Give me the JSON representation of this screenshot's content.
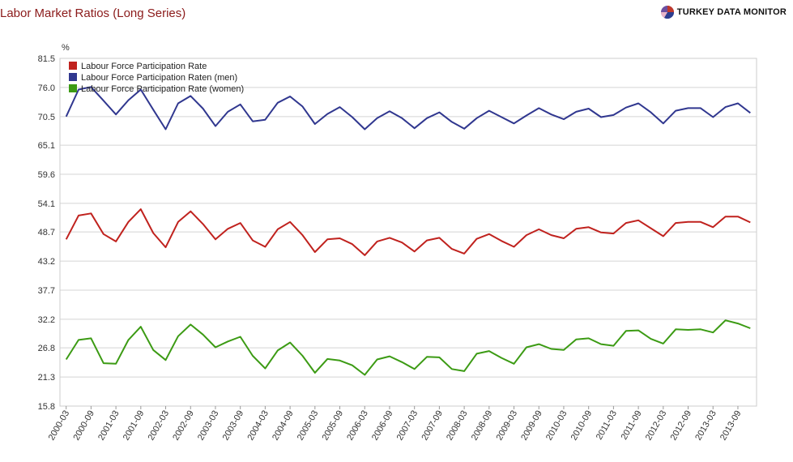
{
  "header": {
    "title": "Labor Market Ratios (Long Series)",
    "brand": "TURKEY DATA MONITOR",
    "brand_colors": [
      "#c0392b",
      "#2c3e8f",
      "#e8b4c8",
      "#6c4fa0"
    ]
  },
  "chart_data": {
    "type": "line",
    "title": "Labor Market Ratios (Long Series)",
    "ylabel": "%",
    "xlabel": "",
    "ylim": [
      15.8,
      81.5
    ],
    "yticks": [
      15.8,
      21.3,
      26.8,
      32.2,
      37.7,
      43.2,
      48.7,
      54.1,
      59.6,
      65.1,
      70.5,
      76.0,
      81.5
    ],
    "ytick_labels": [
      "15.8",
      "21.3",
      "26.8",
      "32.2",
      "37.7",
      "43.2",
      "48.7",
      "54.1",
      "59.6",
      "65.1",
      "70.5",
      "76.0",
      "81.5"
    ],
    "grid": true,
    "legend_position": "top-left",
    "xtick_labels": [
      "2000-03",
      "2000-09",
      "2001-03",
      "2001-09",
      "2002-03",
      "2002-09",
      "2003-03",
      "2003-09",
      "2004-03",
      "2004-09",
      "2005-03",
      "2005-09",
      "2006-03",
      "2006-09",
      "2007-03",
      "2007-09",
      "2008-03",
      "2008-09",
      "2009-03",
      "2009-09",
      "2010-03",
      "2010-09",
      "2011-03",
      "2011-09",
      "2012-03",
      "2012-09",
      "2013-03",
      "2013-09"
    ],
    "x": [
      "2000-03",
      "2000-06",
      "2000-09",
      "2000-12",
      "2001-03",
      "2001-06",
      "2001-09",
      "2001-12",
      "2002-03",
      "2002-06",
      "2002-09",
      "2002-12",
      "2003-03",
      "2003-06",
      "2003-09",
      "2003-12",
      "2004-03",
      "2004-06",
      "2004-09",
      "2004-12",
      "2005-03",
      "2005-06",
      "2005-09",
      "2005-12",
      "2006-03",
      "2006-06",
      "2006-09",
      "2006-12",
      "2007-03",
      "2007-06",
      "2007-09",
      "2007-12",
      "2008-03",
      "2008-06",
      "2008-09",
      "2008-12",
      "2009-03",
      "2009-06",
      "2009-09",
      "2009-12",
      "2010-03",
      "2010-06",
      "2010-09",
      "2010-12",
      "2011-03",
      "2011-06",
      "2011-09",
      "2011-12",
      "2012-03",
      "2012-06",
      "2012-09",
      "2012-12",
      "2013-03",
      "2013-06",
      "2013-09",
      "2013-12"
    ],
    "series": [
      {
        "name": "Labour Force Participation Rate",
        "color": "#c0221e",
        "values": [
          47.3,
          51.8,
          52.2,
          48.3,
          46.9,
          50.6,
          53.0,
          48.5,
          45.8,
          50.6,
          52.6,
          50.2,
          47.3,
          49.3,
          50.4,
          47.1,
          45.9,
          49.2,
          50.6,
          48.1,
          44.9,
          47.3,
          47.5,
          46.4,
          44.3,
          46.9,
          47.6,
          46.7,
          45.0,
          47.1,
          47.6,
          45.5,
          44.6,
          47.4,
          48.3,
          47.0,
          45.9,
          48.1,
          49.2,
          48.1,
          47.5,
          49.3,
          49.6,
          48.6,
          48.4,
          50.4,
          50.9,
          49.4,
          47.9,
          50.4,
          50.6,
          50.6,
          49.6,
          51.6,
          51.6,
          50.5
        ]
      },
      {
        "name": "Labour Force Participation Raten (men)",
        "color": "#30378f",
        "values": [
          70.5,
          75.6,
          76.1,
          73.5,
          70.9,
          73.6,
          75.6,
          71.8,
          68.1,
          73.0,
          74.4,
          72.0,
          68.7,
          71.4,
          72.8,
          69.6,
          69.9,
          73.1,
          74.3,
          72.4,
          69.1,
          71.0,
          72.3,
          70.4,
          68.1,
          70.2,
          71.5,
          70.2,
          68.3,
          70.2,
          71.3,
          69.5,
          68.2,
          70.2,
          71.6,
          70.4,
          69.2,
          70.7,
          72.1,
          70.9,
          70.0,
          71.4,
          72.0,
          70.4,
          70.8,
          72.2,
          73.0,
          71.3,
          69.2,
          71.6,
          72.1,
          72.1,
          70.4,
          72.3,
          73.0,
          71.2
        ]
      },
      {
        "name": "Labour Force Participation Rate (women)",
        "color": "#3c9b14",
        "values": [
          24.6,
          28.3,
          28.6,
          23.9,
          23.8,
          28.3,
          30.8,
          26.4,
          24.5,
          29.0,
          31.2,
          29.3,
          26.9,
          28.0,
          28.9,
          25.3,
          22.9,
          26.3,
          27.8,
          25.3,
          22.1,
          24.7,
          24.4,
          23.5,
          21.7,
          24.6,
          25.2,
          24.1,
          22.8,
          25.1,
          25.0,
          22.8,
          22.4,
          25.7,
          26.2,
          24.9,
          23.8,
          26.9,
          27.5,
          26.6,
          26.4,
          28.4,
          28.6,
          27.5,
          27.2,
          30.0,
          30.1,
          28.5,
          27.6,
          30.3,
          30.2,
          30.3,
          29.7,
          32.0,
          31.4,
          30.5
        ]
      }
    ]
  }
}
